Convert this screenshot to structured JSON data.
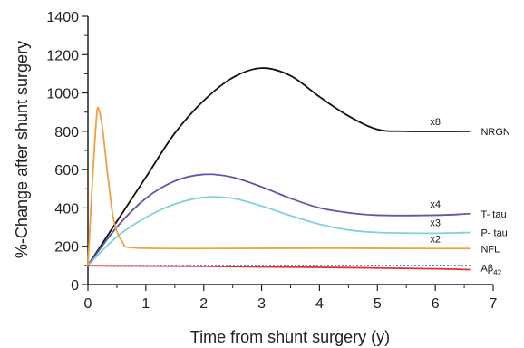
{
  "chart_data": {
    "type": "line",
    "xlabel": "Time from shunt surgery (y)",
    "ylabel": "%-Change after shunt surgery",
    "xlim": [
      0,
      7
    ],
    "ylim": [
      0,
      1400
    ],
    "x_ticks": [
      "0",
      "1",
      "2",
      "3",
      "4",
      "5",
      "6",
      "7"
    ],
    "y_ticks": [
      "0",
      "200",
      "400",
      "600",
      "800",
      "1000",
      "1200",
      "1400"
    ],
    "baseline": {
      "y": 100,
      "style": "dotted",
      "color": "#1f3a8a"
    },
    "series": [
      {
        "name": "NRGN",
        "multiplier": "x8",
        "color": "#111111",
        "points": [
          [
            0,
            100
          ],
          [
            0.5,
            330
          ],
          [
            1,
            560
          ],
          [
            1.5,
            790
          ],
          [
            2,
            960
          ],
          [
            2.5,
            1080
          ],
          [
            3,
            1130
          ],
          [
            3.5,
            1090
          ],
          [
            4,
            980
          ],
          [
            4.5,
            880
          ],
          [
            5,
            810
          ],
          [
            5.5,
            800
          ],
          [
            6.6,
            800
          ]
        ]
      },
      {
        "name": "T- tau",
        "multiplier": "x4",
        "color": "#5a5aa8",
        "points": [
          [
            0,
            100
          ],
          [
            0.5,
            300
          ],
          [
            1,
            450
          ],
          [
            1.5,
            540
          ],
          [
            2,
            575
          ],
          [
            2.5,
            560
          ],
          [
            3,
            510
          ],
          [
            3.5,
            450
          ],
          [
            4,
            400
          ],
          [
            4.5,
            375
          ],
          [
            5,
            362
          ],
          [
            6,
            362
          ],
          [
            6.6,
            370
          ]
        ]
      },
      {
        "name": "P- tau",
        "multiplier": "x3",
        "color": "#7fcfe3",
        "points": [
          [
            0,
            100
          ],
          [
            0.5,
            250
          ],
          [
            1,
            350
          ],
          [
            1.5,
            420
          ],
          [
            2,
            455
          ],
          [
            2.5,
            450
          ],
          [
            3,
            410
          ],
          [
            3.5,
            360
          ],
          [
            4,
            315
          ],
          [
            4.5,
            285
          ],
          [
            5,
            272
          ],
          [
            6,
            268
          ],
          [
            6.6,
            272
          ]
        ]
      },
      {
        "name": "NFL",
        "multiplier": "x2",
        "color": "#f0a040",
        "points": [
          [
            0,
            100
          ],
          [
            0.07,
            500
          ],
          [
            0.15,
            880
          ],
          [
            0.19,
            910
          ],
          [
            0.25,
            820
          ],
          [
            0.35,
            550
          ],
          [
            0.45,
            330
          ],
          [
            0.6,
            220
          ],
          [
            0.8,
            192
          ],
          [
            2,
            188
          ],
          [
            4,
            190
          ],
          [
            6,
            188
          ],
          [
            6.6,
            188
          ]
        ]
      },
      {
        "name": "Aβ42",
        "multiplier": "",
        "color": "#e03030",
        "points": [
          [
            0,
            98
          ],
          [
            2,
            95
          ],
          [
            4,
            90
          ],
          [
            6,
            82
          ],
          [
            6.6,
            78
          ]
        ]
      }
    ],
    "labels": {
      "NRGN": {
        "name": "NRGN",
        "multiplier": "x8"
      },
      "T- tau": {
        "name": "T- tau",
        "multiplier": "x4"
      },
      "P- tau": {
        "name": "P- tau",
        "multiplier": "x3"
      },
      "NFL": {
        "name": "NFL",
        "multiplier": "x2"
      },
      "Aβ42": {
        "name_main": "Aβ",
        "name_sub": "42"
      }
    }
  }
}
